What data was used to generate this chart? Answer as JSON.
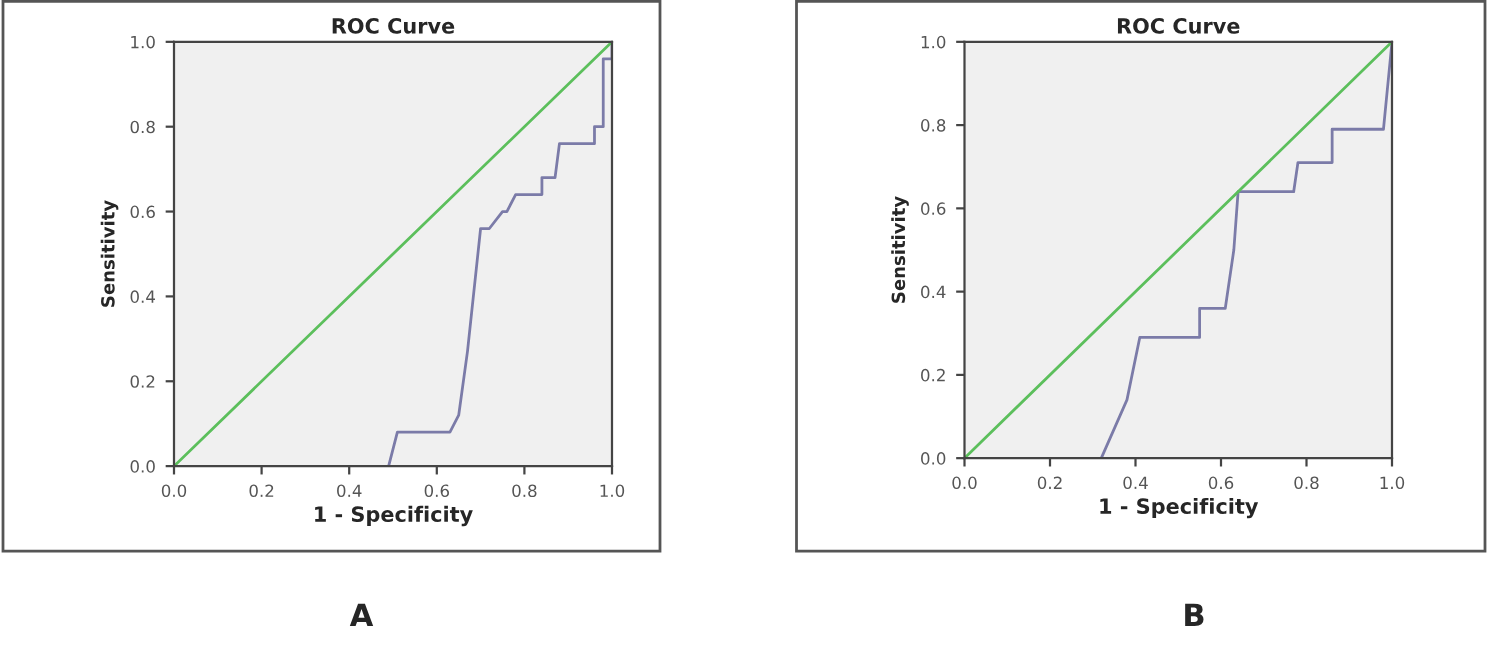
{
  "chart_data": [
    {
      "type": "line",
      "title": "ROC Curve",
      "xlabel": "1 - Specificity",
      "ylabel": "Sensitivity",
      "annotations": [
        "A"
      ],
      "grid": false,
      "xlim": [
        0,
        1
      ],
      "ylim": [
        0,
        1
      ],
      "xticks": [
        {
          "value": 0,
          "label": "0.0"
        },
        {
          "value": 0.2,
          "label": "0.2"
        },
        {
          "value": 0.4,
          "label": "0.4"
        },
        {
          "value": 0.6,
          "label": "0.6"
        },
        {
          "value": 0.8,
          "label": "0.8"
        },
        {
          "value": 1,
          "label": "1.0"
        }
      ],
      "yticks": [
        {
          "value": 0,
          "label": "0.0"
        },
        {
          "value": 0.2,
          "label": "0.2"
        },
        {
          "value": 0.4,
          "label": "0.4"
        },
        {
          "value": 0.6,
          "label": "0.6"
        },
        {
          "value": 0.8,
          "label": "0.8"
        },
        {
          "value": 1,
          "label": "1.0"
        }
      ],
      "series": [
        {
          "color": "#7b7ba8",
          "x": [
            0.49,
            0.51,
            0.63,
            0.65,
            0.67,
            0.7,
            0.72,
            0.75,
            0.76,
            0.78,
            0.84,
            0.84,
            0.87,
            0.88,
            0.96,
            0.96,
            0.98,
            0.98,
            1.0,
            1.0
          ],
          "values": [
            0,
            0.08,
            0.08,
            0.12,
            0.27,
            0.56,
            0.56,
            0.6,
            0.6,
            0.64,
            0.64,
            0.68,
            0.68,
            0.76,
            0.76,
            0.8,
            0.8,
            0.96,
            0.96,
            1.0
          ]
        },
        {
          "color": "#5cbf5c",
          "x": [
            0,
            1
          ],
          "values": [
            0,
            1
          ]
        }
      ]
    },
    {
      "type": "line",
      "title": "ROC Curve",
      "xlabel": "1 - Specificity",
      "ylabel": "Sensitivity",
      "annotations": [
        "B"
      ],
      "grid": false,
      "xlim": [
        0,
        1
      ],
      "ylim": [
        0,
        1
      ],
      "xticks": [
        {
          "value": 0,
          "label": "0.0"
        },
        {
          "value": 0.2,
          "label": "0.2"
        },
        {
          "value": 0.4,
          "label": "0.4"
        },
        {
          "value": 0.6,
          "label": "0.6"
        },
        {
          "value": 0.8,
          "label": "0.8"
        },
        {
          "value": 1,
          "label": "1.0"
        }
      ],
      "yticks": [
        {
          "value": 0,
          "label": "0.0"
        },
        {
          "value": 0.2,
          "label": "0.2"
        },
        {
          "value": 0.4,
          "label": "0.4"
        },
        {
          "value": 0.6,
          "label": "0.6"
        },
        {
          "value": 0.8,
          "label": "0.8"
        },
        {
          "value": 1,
          "label": "1.0"
        }
      ],
      "series": [
        {
          "color": "#7b7ba8",
          "x": [
            0.32,
            0.38,
            0.41,
            0.55,
            0.55,
            0.61,
            0.63,
            0.64,
            0.77,
            0.78,
            0.86,
            0.86,
            0.98,
            1.0
          ],
          "values": [
            0,
            0.14,
            0.29,
            0.29,
            0.36,
            0.36,
            0.5,
            0.64,
            0.64,
            0.71,
            0.71,
            0.79,
            0.79,
            1.0
          ]
        },
        {
          "color": "#5cbf5c",
          "x": [
            0,
            1
          ],
          "values": [
            0,
            1
          ]
        }
      ]
    }
  ]
}
